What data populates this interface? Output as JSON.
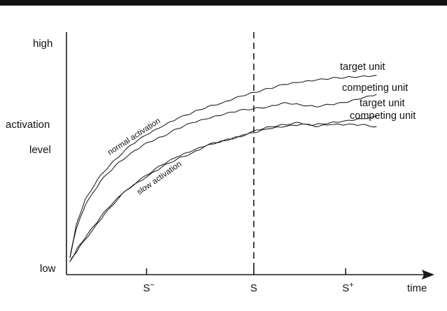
{
  "figure": {
    "top_rule_color": "#111111",
    "ink_color": "#1a1a1a"
  },
  "chart_data": {
    "type": "line",
    "title": "",
    "xlabel": "time",
    "ylabel": "activation level",
    "y_axis_labels": {
      "high": "high",
      "activation": "activation",
      "level": "level",
      "low": "low"
    },
    "x_ticks": [
      {
        "label_base": "S",
        "label_sup": "−",
        "x": 0.25
      },
      {
        "label_base": "S",
        "label_sup": "",
        "x": 0.6
      },
      {
        "label_base": "S",
        "label_sup": "+",
        "x": 0.9
      }
    ],
    "xlim": [
      0,
      1.05
    ],
    "ylim": [
      0,
      1
    ],
    "grid": false,
    "reference_line": {
      "x": 0.6,
      "style": "dashed"
    },
    "groups": [
      {
        "label": "normal activation"
      },
      {
        "label": "slow activation"
      }
    ],
    "series": [
      {
        "name": "target unit",
        "group": "normal activation",
        "x": [
          0,
          0.02,
          0.05,
          0.1,
          0.15,
          0.2,
          0.25,
          0.3,
          0.35,
          0.4,
          0.45,
          0.5,
          0.55,
          0.6,
          0.65,
          0.7,
          0.75,
          0.8,
          0.85,
          0.9,
          0.95,
          1.0
        ],
        "y": [
          0.04,
          0.2,
          0.33,
          0.45,
          0.53,
          0.6,
          0.65,
          0.69,
          0.73,
          0.76,
          0.79,
          0.81,
          0.84,
          0.86,
          0.88,
          0.9,
          0.91,
          0.92,
          0.93,
          0.935,
          0.94,
          0.945
        ]
      },
      {
        "name": "competing unit",
        "group": "normal activation",
        "x": [
          0,
          0.02,
          0.05,
          0.1,
          0.15,
          0.2,
          0.25,
          0.3,
          0.35,
          0.4,
          0.45,
          0.5,
          0.55,
          0.6,
          0.65,
          0.7,
          0.75,
          0.8,
          0.85,
          0.9,
          0.95,
          1.0
        ],
        "y": [
          0.04,
          0.18,
          0.3,
          0.42,
          0.5,
          0.56,
          0.61,
          0.64,
          0.68,
          0.71,
          0.73,
          0.75,
          0.77,
          0.78,
          0.79,
          0.81,
          0.8,
          0.79,
          0.8,
          0.81,
          0.83,
          0.85
        ]
      },
      {
        "name": "target unit",
        "group": "slow activation",
        "x": [
          0,
          0.03,
          0.08,
          0.12,
          0.18,
          0.25,
          0.3,
          0.35,
          0.4,
          0.45,
          0.5,
          0.55,
          0.6,
          0.65,
          0.7,
          0.75,
          0.8,
          0.85,
          0.9,
          0.95,
          1.0
        ],
        "y": [
          0.02,
          0.1,
          0.2,
          0.28,
          0.37,
          0.44,
          0.49,
          0.53,
          0.56,
          0.6,
          0.62,
          0.64,
          0.66,
          0.68,
          0.69,
          0.7,
          0.7,
          0.71,
          0.72,
          0.73,
          0.74
        ]
      },
      {
        "name": "competing unit",
        "group": "slow activation",
        "x": [
          0,
          0.03,
          0.08,
          0.12,
          0.18,
          0.25,
          0.3,
          0.35,
          0.4,
          0.45,
          0.5,
          0.55,
          0.6,
          0.65,
          0.7,
          0.75,
          0.8,
          0.85,
          0.9,
          0.95,
          1.0
        ],
        "y": [
          0.02,
          0.09,
          0.19,
          0.27,
          0.37,
          0.45,
          0.5,
          0.54,
          0.57,
          0.6,
          0.62,
          0.64,
          0.67,
          0.69,
          0.7,
          0.71,
          0.69,
          0.7,
          0.7,
          0.7,
          0.69
        ]
      }
    ]
  }
}
